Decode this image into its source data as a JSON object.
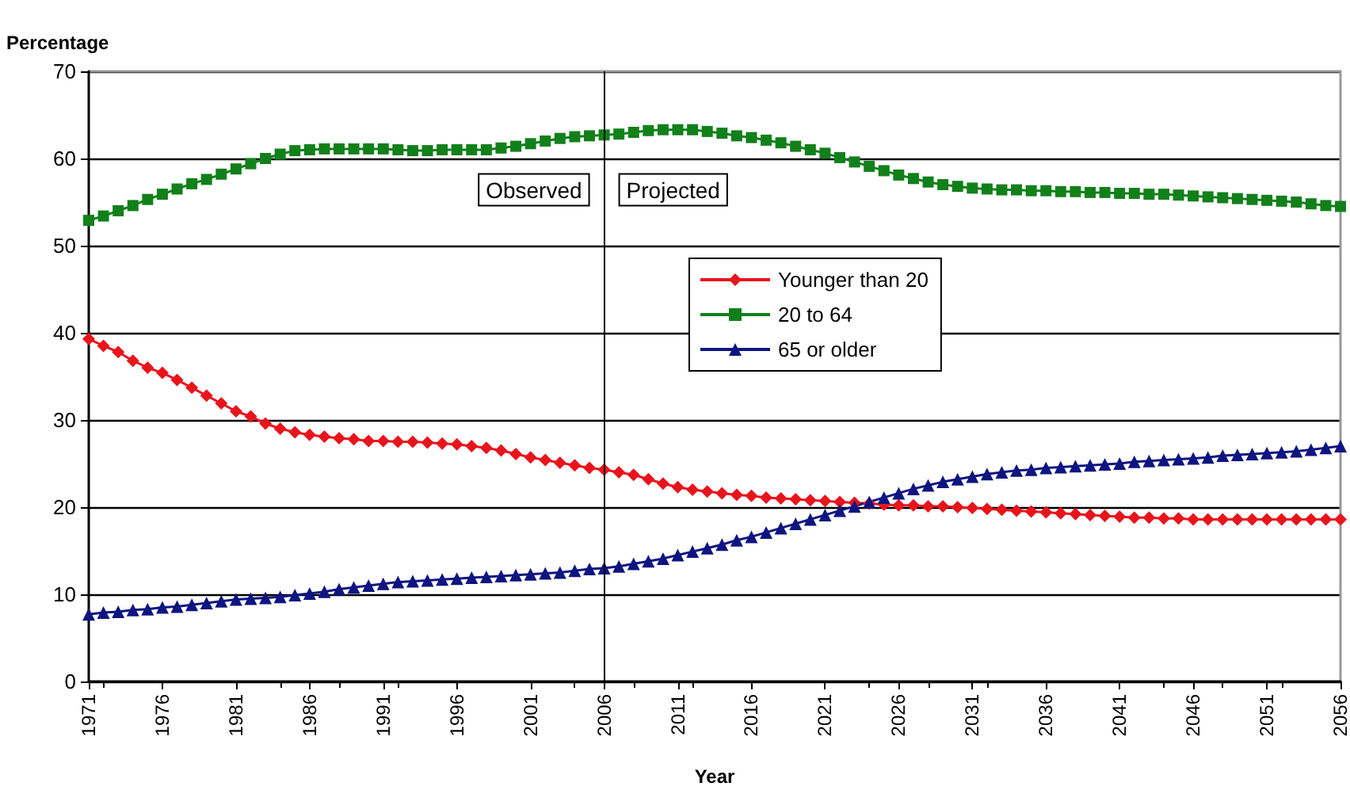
{
  "chart_data": {
    "type": "line",
    "xlabel": "Year",
    "ylabel": "Percentage",
    "x": [
      1971,
      1972,
      1973,
      1974,
      1975,
      1976,
      1977,
      1978,
      1979,
      1980,
      1981,
      1982,
      1983,
      1984,
      1985,
      1986,
      1987,
      1988,
      1989,
      1990,
      1991,
      1992,
      1993,
      1994,
      1995,
      1996,
      1997,
      1998,
      1999,
      2000,
      2001,
      2002,
      2003,
      2004,
      2005,
      2006,
      2007,
      2008,
      2009,
      2010,
      2011,
      2012,
      2013,
      2014,
      2015,
      2016,
      2017,
      2018,
      2019,
      2020,
      2021,
      2022,
      2023,
      2024,
      2025,
      2026,
      2027,
      2028,
      2029,
      2030,
      2031,
      2032,
      2033,
      2034,
      2035,
      2036,
      2037,
      2038,
      2039,
      2040,
      2041,
      2042,
      2043,
      2044,
      2045,
      2046,
      2047,
      2048,
      2049,
      2050,
      2051,
      2052,
      2053,
      2054,
      2055,
      2056
    ],
    "series": [
      {
        "name": "Younger than 20",
        "color": "#e8141c",
        "marker": "diamond",
        "values": [
          39.3,
          38.5,
          37.8,
          36.8,
          36.0,
          35.4,
          34.6,
          33.7,
          32.8,
          31.9,
          31.0,
          30.4,
          29.6,
          29.0,
          28.6,
          28.3,
          28.1,
          27.9,
          27.8,
          27.6,
          27.6,
          27.5,
          27.5,
          27.4,
          27.3,
          27.2,
          27.0,
          26.8,
          26.5,
          26.1,
          25.7,
          25.4,
          25.1,
          24.8,
          24.5,
          24.3,
          24.0,
          23.7,
          23.2,
          22.7,
          22.3,
          22.0,
          21.8,
          21.6,
          21.4,
          21.3,
          21.1,
          21.0,
          20.9,
          20.8,
          20.7,
          20.6,
          20.5,
          20.4,
          20.3,
          20.2,
          20.2,
          20.1,
          20.1,
          20.0,
          19.9,
          19.8,
          19.7,
          19.6,
          19.5,
          19.4,
          19.3,
          19.2,
          19.1,
          19.0,
          18.9,
          18.8,
          18.8,
          18.7,
          18.7,
          18.6,
          18.6,
          18.6,
          18.6,
          18.6,
          18.6,
          18.6,
          18.6,
          18.6,
          18.6,
          18.6
        ]
      },
      {
        "name": "20 to 64",
        "color": "#11801a",
        "marker": "square",
        "values": [
          52.9,
          53.4,
          54.0,
          54.6,
          55.3,
          55.9,
          56.5,
          57.1,
          57.6,
          58.2,
          58.8,
          59.4,
          60.0,
          60.5,
          60.9,
          61.0,
          61.1,
          61.1,
          61.1,
          61.1,
          61.1,
          61.0,
          60.9,
          60.9,
          61.0,
          61.0,
          61.0,
          61.0,
          61.2,
          61.4,
          61.7,
          62.0,
          62.3,
          62.5,
          62.6,
          62.7,
          62.8,
          63.0,
          63.2,
          63.3,
          63.3,
          63.3,
          63.1,
          62.9,
          62.6,
          62.4,
          62.1,
          61.8,
          61.4,
          61.0,
          60.6,
          60.1,
          59.6,
          59.1,
          58.6,
          58.1,
          57.7,
          57.3,
          57.0,
          56.8,
          56.6,
          56.5,
          56.4,
          56.4,
          56.3,
          56.3,
          56.2,
          56.2,
          56.1,
          56.1,
          56.0,
          56.0,
          55.9,
          55.9,
          55.8,
          55.7,
          55.6,
          55.5,
          55.4,
          55.3,
          55.2,
          55.1,
          55.0,
          54.8,
          54.6,
          54.5
        ]
      },
      {
        "name": "65 or older",
        "color": "#0f1580",
        "marker": "triangle",
        "values": [
          7.7,
          7.9,
          8.0,
          8.2,
          8.3,
          8.5,
          8.6,
          8.8,
          9.0,
          9.2,
          9.4,
          9.5,
          9.6,
          9.7,
          9.9,
          10.1,
          10.3,
          10.6,
          10.8,
          11.0,
          11.2,
          11.4,
          11.5,
          11.6,
          11.7,
          11.8,
          11.9,
          12.0,
          12.1,
          12.2,
          12.3,
          12.4,
          12.5,
          12.7,
          12.9,
          13.0,
          13.2,
          13.5,
          13.8,
          14.1,
          14.5,
          14.9,
          15.3,
          15.7,
          16.2,
          16.6,
          17.1,
          17.6,
          18.1,
          18.6,
          19.1,
          19.6,
          20.1,
          20.6,
          21.1,
          21.6,
          22.1,
          22.5,
          22.9,
          23.2,
          23.5,
          23.8,
          24.0,
          24.2,
          24.3,
          24.5,
          24.6,
          24.7,
          24.8,
          24.9,
          25.0,
          25.2,
          25.3,
          25.4,
          25.5,
          25.6,
          25.7,
          25.9,
          26.0,
          26.1,
          26.2,
          26.3,
          26.4,
          26.6,
          26.8,
          27.0
        ]
      }
    ],
    "xlim": [
      1971,
      2056
    ],
    "xticks": [
      1971,
      1976,
      1981,
      1986,
      1991,
      1996,
      2001,
      2006,
      2011,
      2016,
      2021,
      2026,
      2031,
      2036,
      2041,
      2046,
      2051,
      2056
    ],
    "ylim": [
      0,
      70
    ],
    "yticks": [
      0,
      10,
      20,
      30,
      40,
      50,
      60,
      70
    ],
    "ref_lines": [
      {
        "axis": "x",
        "value": 2006,
        "color": "#000000"
      }
    ],
    "annotations": [
      "Observed",
      "Projected"
    ],
    "grid": "y",
    "legend": "top"
  }
}
